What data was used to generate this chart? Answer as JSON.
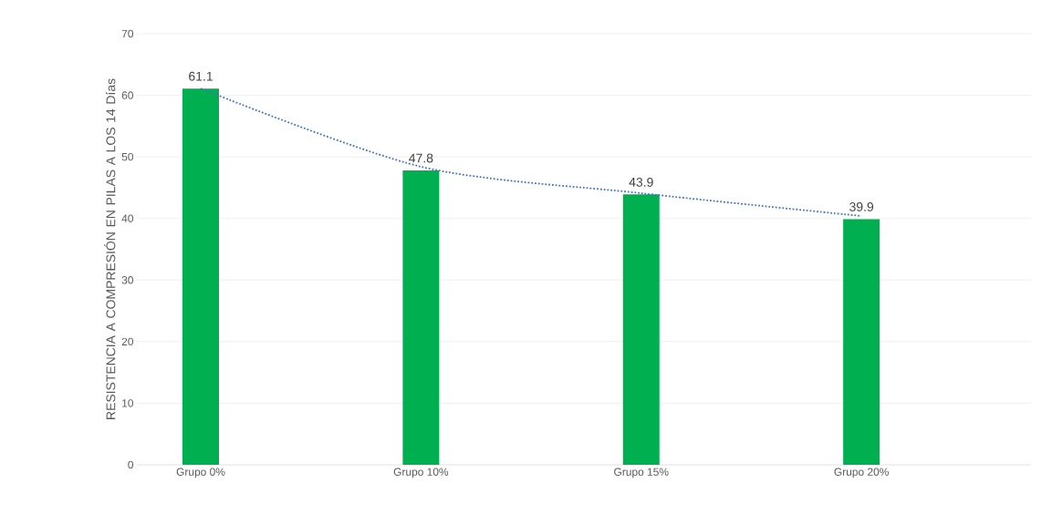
{
  "chart_data": {
    "type": "bar",
    "ylabel": "RESISTENCIA A COMPRESIÓN  EN PILAS A LOS 14 Días",
    "categories": [
      "Grupo 0%",
      "Grupo 10%",
      "Grupo 15%",
      "Grupo 20%"
    ],
    "series": [
      {
        "color": "#00b050",
        "values": [
          61.1,
          47.8,
          43.9,
          39.9
        ],
        "data_labels": true
      },
      {
        "type": "line",
        "color": "#4472c4",
        "line_style": "dotted",
        "marker": "none",
        "values": [
          61.1,
          48.4,
          44.1,
          40.4
        ]
      }
    ],
    "ylim": [
      0,
      70
    ],
    "yticks": [
      0,
      10,
      20,
      30,
      40,
      50,
      60,
      70
    ],
    "grid": "y"
  }
}
